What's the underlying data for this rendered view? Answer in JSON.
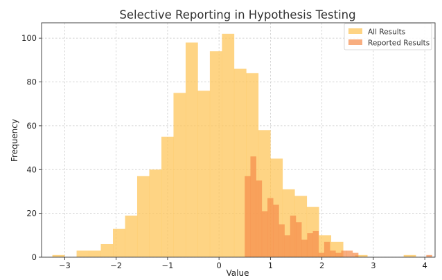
{
  "chart_data": {
    "type": "bar",
    "title": "Selective Reporting in Hypothesis Testing",
    "xlabel": "Value",
    "ylabel": "Frequency",
    "xlim": [
      -3.45,
      4.2
    ],
    "ylim": [
      0,
      107
    ],
    "xticks": [
      -3,
      -2,
      -1,
      0,
      1,
      2,
      3,
      4
    ],
    "xtick_labels": [
      "−3",
      "−2",
      "−1",
      "0",
      "1",
      "2",
      "3",
      "4"
    ],
    "yticks": [
      0,
      20,
      40,
      60,
      80,
      100
    ],
    "ytick_labels": [
      "0",
      "20",
      "40",
      "60",
      "80",
      "100"
    ],
    "grid": true,
    "legend_position": "top-right",
    "series": [
      {
        "name": "All Results",
        "color": "#fdc55b",
        "opacity": 0.75,
        "bin_start": -3.24,
        "bin_width": 0.2355,
        "values": [
          1,
          0,
          3,
          3,
          6,
          13,
          19,
          37,
          40,
          55,
          75,
          98,
          76,
          94,
          102,
          86,
          84,
          58,
          45,
          31,
          28,
          23,
          10,
          7,
          0,
          1,
          0,
          0,
          0,
          1
        ]
      },
      {
        "name": "Reported Results",
        "color": "#f58b4a",
        "opacity": 0.7,
        "bin_start": 0.5,
        "bin_width": 0.1103,
        "values": [
          37,
          46,
          35,
          21,
          27,
          24,
          15,
          10,
          19,
          16,
          8,
          11,
          12,
          2,
          7,
          3,
          2,
          3,
          3,
          2,
          0,
          0,
          0,
          0,
          0,
          0,
          0,
          0,
          0,
          0,
          0,
          0,
          1,
          0
        ]
      }
    ]
  }
}
